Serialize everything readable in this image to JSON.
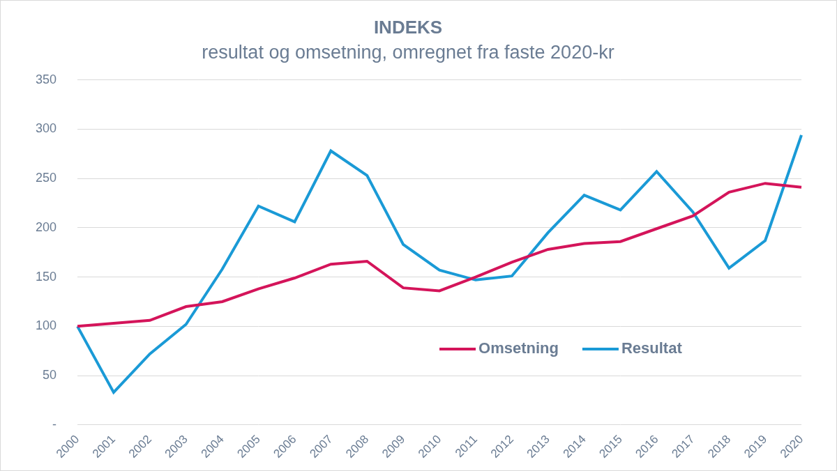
{
  "chart_data": {
    "type": "line",
    "title": "INDEKS",
    "subtitle": "resultat og omsetning, omregnet fra faste 2020-kr",
    "categories": [
      "2000",
      "2001",
      "2002",
      "2003",
      "2004",
      "2005",
      "2006",
      "2007",
      "2008",
      "2009",
      "2010",
      "2011",
      "2012",
      "2013",
      "2014",
      "2015",
      "2016",
      "2017",
      "2018",
      "2019",
      "2020"
    ],
    "series": [
      {
        "name": "Omsetning",
        "color": "#d4145a",
        "values": [
          100,
          103,
          106,
          120,
          125,
          138,
          149,
          163,
          166,
          139,
          136,
          150,
          165,
          178,
          184,
          186,
          199,
          212,
          236,
          245,
          241
        ]
      },
      {
        "name": "Resultat",
        "color": "#1a9ad6",
        "values": [
          100,
          33,
          72,
          102,
          158,
          222,
          206,
          278,
          253,
          183,
          157,
          147,
          151,
          195,
          233,
          218,
          257,
          216,
          159,
          187,
          294
        ]
      }
    ],
    "ylim": [
      0,
      350
    ],
    "yticks": [
      {
        "value": 0,
        "label": "-"
      },
      50,
      100,
      150,
      200,
      250,
      300,
      350
    ],
    "grid": true,
    "legend": "lower right"
  }
}
